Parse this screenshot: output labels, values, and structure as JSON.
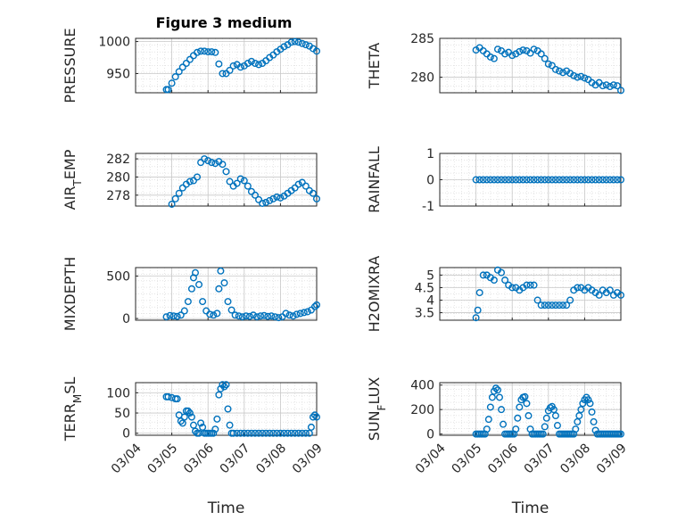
{
  "figure": {
    "title": "Figure 3 medium"
  },
  "colors": {
    "marker": "#0072BD",
    "axis": "#262626",
    "grid": "#dcdcdc"
  },
  "chart_data": [
    {
      "type": "scatter",
      "ylabel": "PRESSURE",
      "ylabel_sub": null,
      "ylim": [
        920,
        1005
      ],
      "yticks": [
        950,
        1000
      ],
      "ytick_labels": [
        "950",
        "1000"
      ],
      "xlabel": "",
      "show_xticks": false,
      "x": [
        4.85,
        4.9,
        5.0,
        5.1,
        5.2,
        5.3,
        5.4,
        5.5,
        5.6,
        5.7,
        5.8,
        5.9,
        6.0,
        6.1,
        6.2,
        6.3,
        6.4,
        6.5,
        6.6,
        6.7,
        6.8,
        6.9,
        7.0,
        7.1,
        7.2,
        7.3,
        7.4,
        7.5,
        7.6,
        7.7,
        7.8,
        7.9,
        8.0,
        8.1,
        8.2,
        8.3,
        8.4,
        8.5,
        8.6,
        8.7,
        8.8,
        8.9,
        9.0
      ],
      "y": [
        925,
        925,
        935,
        945,
        953,
        960,
        966,
        972,
        978,
        983,
        985,
        985,
        984,
        984,
        983,
        965,
        950,
        950,
        955,
        962,
        964,
        960,
        962,
        966,
        969,
        966,
        964,
        966,
        970,
        975,
        979,
        984,
        988,
        992,
        995,
        999,
        1000,
        999,
        997,
        995,
        993,
        989,
        985
      ]
    },
    {
      "type": "scatter",
      "ylabel": "THETA",
      "ylabel_sub": null,
      "ylim": [
        278,
        285
      ],
      "yticks": [
        280,
        285
      ],
      "ytick_labels": [
        "280",
        "285"
      ],
      "xlabel": "",
      "show_xticks": false,
      "x": [
        5.0,
        5.1,
        5.2,
        5.3,
        5.4,
        5.5,
        5.6,
        5.7,
        5.8,
        5.9,
        6.0,
        6.1,
        6.2,
        6.3,
        6.4,
        6.5,
        6.6,
        6.7,
        6.8,
        6.9,
        7.0,
        7.1,
        7.2,
        7.3,
        7.4,
        7.5,
        7.6,
        7.7,
        7.8,
        7.9,
        8.0,
        8.1,
        8.2,
        8.3,
        8.4,
        8.5,
        8.6,
        8.7,
        8.8,
        8.9,
        9.0
      ],
      "y": [
        283.5,
        283.8,
        283.4,
        283.0,
        282.6,
        282.4,
        283.6,
        283.4,
        283.0,
        283.2,
        282.8,
        283.0,
        283.3,
        283.5,
        283.4,
        283.1,
        283.6,
        283.4,
        283.0,
        282.4,
        281.7,
        281.5,
        281.0,
        280.8,
        280.6,
        280.8,
        280.5,
        280.2,
        280.0,
        280.1,
        279.9,
        279.7,
        279.3,
        279.0,
        279.3,
        278.9,
        279.0,
        278.8,
        279.0,
        278.9,
        278.3
      ]
    },
    {
      "type": "scatter",
      "ylabel": "AIR",
      "ylabel_sub": "T",
      "ylabel_suffix": "EMP",
      "ylim": [
        276.8,
        282.6
      ],
      "yticks": [
        278,
        280,
        282
      ],
      "ytick_labels": [
        "278",
        "280",
        "282"
      ],
      "xlabel": "",
      "show_xticks": false,
      "x": [
        5.0,
        5.1,
        5.2,
        5.3,
        5.4,
        5.5,
        5.6,
        5.7,
        5.8,
        5.9,
        6.0,
        6.1,
        6.2,
        6.3,
        6.4,
        6.5,
        6.6,
        6.7,
        6.8,
        6.9,
        7.0,
        7.1,
        7.2,
        7.3,
        7.4,
        7.5,
        7.6,
        7.7,
        7.8,
        7.9,
        8.0,
        8.1,
        8.2,
        8.3,
        8.4,
        8.5,
        8.6,
        8.7,
        8.8,
        8.9,
        9.0
      ],
      "y": [
        277.0,
        277.6,
        278.2,
        278.8,
        279.2,
        279.5,
        279.6,
        280.0,
        281.6,
        282.0,
        281.8,
        281.6,
        281.5,
        281.7,
        281.4,
        280.6,
        279.5,
        279.0,
        279.3,
        279.8,
        279.6,
        279.0,
        278.4,
        278.0,
        277.5,
        277.1,
        277.2,
        277.4,
        277.6,
        277.8,
        277.7,
        277.9,
        278.2,
        278.5,
        278.8,
        279.2,
        279.4,
        279.0,
        278.5,
        278.2,
        277.6
      ]
    },
    {
      "type": "scatter",
      "ylabel": "RAINFALL",
      "ylabel_sub": null,
      "ylim": [
        -1,
        1
      ],
      "yticks": [
        -1,
        0,
        1
      ],
      "ytick_labels": [
        "-1",
        "0",
        "1"
      ],
      "xlabel": "",
      "show_xticks": false,
      "x": [
        5.0,
        5.1,
        5.2,
        5.3,
        5.4,
        5.5,
        5.6,
        5.7,
        5.8,
        5.9,
        6.0,
        6.1,
        6.2,
        6.3,
        6.4,
        6.5,
        6.6,
        6.7,
        6.8,
        6.9,
        7.0,
        7.1,
        7.2,
        7.3,
        7.4,
        7.5,
        7.6,
        7.7,
        7.8,
        7.9,
        8.0,
        8.1,
        8.2,
        8.3,
        8.4,
        8.5,
        8.6,
        8.7,
        8.8,
        8.9,
        9.0
      ],
      "y": [
        0,
        0,
        0,
        0,
        0,
        0,
        0,
        0,
        0,
        0,
        0,
        0,
        0,
        0,
        0,
        0,
        0,
        0,
        0,
        0,
        0,
        0,
        0,
        0,
        0,
        0,
        0,
        0,
        0,
        0,
        0,
        0,
        0,
        0,
        0,
        0,
        0,
        0,
        0,
        0,
        0
      ]
    },
    {
      "type": "scatter",
      "ylabel": "MIXDEPTH",
      "ylabel_sub": null,
      "ylim": [
        -20,
        600
      ],
      "yticks": [
        0,
        500
      ],
      "ytick_labels": [
        "0",
        "500"
      ],
      "xlabel": "",
      "show_xticks": false,
      "x": [
        4.85,
        4.95,
        5.05,
        5.15,
        5.25,
        5.35,
        5.45,
        5.55,
        5.6,
        5.65,
        5.75,
        5.85,
        5.95,
        6.05,
        6.15,
        6.25,
        6.3,
        6.35,
        6.45,
        6.55,
        6.65,
        6.75,
        6.85,
        6.95,
        7.05,
        7.15,
        7.25,
        7.35,
        7.45,
        7.55,
        7.65,
        7.75,
        7.85,
        7.95,
        8.05,
        8.15,
        8.25,
        8.35,
        8.45,
        8.55,
        8.65,
        8.75,
        8.85,
        8.95,
        9.0
      ],
      "y": [
        20,
        35,
        30,
        25,
        40,
        90,
        200,
        350,
        480,
        540,
        400,
        200,
        90,
        50,
        40,
        60,
        350,
        560,
        420,
        200,
        100,
        40,
        30,
        20,
        30,
        25,
        40,
        20,
        30,
        35,
        25,
        30,
        20,
        10,
        20,
        60,
        40,
        30,
        50,
        60,
        70,
        80,
        100,
        140,
        160
      ]
    },
    {
      "type": "scatter",
      "ylabel": "H2OMIXRA",
      "ylabel_sub": null,
      "ylim": [
        3.2,
        5.3
      ],
      "yticks": [
        3.5,
        4,
        4.5,
        5
      ],
      "ytick_labels": [
        "3.5",
        "4",
        "4.5",
        "5"
      ],
      "xlabel": "",
      "show_xticks": false,
      "x": [
        5.0,
        5.05,
        5.1,
        5.2,
        5.3,
        5.4,
        5.5,
        5.6,
        5.7,
        5.8,
        5.9,
        6.0,
        6.1,
        6.2,
        6.3,
        6.4,
        6.5,
        6.6,
        6.7,
        6.8,
        6.9,
        7.0,
        7.1,
        7.2,
        7.3,
        7.4,
        7.5,
        7.6,
        7.7,
        7.8,
        7.9,
        8.0,
        8.1,
        8.2,
        8.3,
        8.4,
        8.5,
        8.6,
        8.7,
        8.8,
        8.9,
        9.0
      ],
      "y": [
        3.3,
        3.6,
        4.3,
        5.0,
        5.0,
        4.9,
        4.8,
        5.2,
        5.1,
        4.8,
        4.6,
        4.5,
        4.5,
        4.4,
        4.5,
        4.6,
        4.6,
        4.6,
        4.0,
        3.8,
        3.8,
        3.8,
        3.8,
        3.8,
        3.8,
        3.8,
        3.8,
        4.0,
        4.4,
        4.5,
        4.5,
        4.4,
        4.5,
        4.4,
        4.3,
        4.2,
        4.4,
        4.3,
        4.4,
        4.2,
        4.3,
        4.2
      ]
    },
    {
      "type": "scatter",
      "ylabel": "TERR",
      "ylabel_sub": "M",
      "ylabel_suffix": "SL",
      "ylim": [
        -5,
        125
      ],
      "yticks": [
        0,
        50,
        100
      ],
      "ytick_labels": [
        "0",
        "50",
        "100"
      ],
      "xlabel": "Time",
      "show_xticks": true,
      "xticks": [
        4,
        5,
        6,
        7,
        8,
        9
      ],
      "xtick_labels": [
        "03/04",
        "03/05",
        "03/06",
        "03/07",
        "03/08",
        "03/09"
      ],
      "x": [
        4.85,
        4.9,
        5.0,
        5.1,
        5.15,
        5.2,
        5.25,
        5.3,
        5.35,
        5.4,
        5.45,
        5.5,
        5.55,
        5.6,
        5.65,
        5.7,
        5.75,
        5.8,
        5.85,
        5.9,
        5.95,
        6.0,
        6.05,
        6.1,
        6.15,
        6.2,
        6.25,
        6.3,
        6.35,
        6.4,
        6.45,
        6.5,
        6.55,
        6.6,
        6.65,
        6.7,
        6.8,
        6.9,
        7.0,
        7.1,
        7.2,
        7.3,
        7.4,
        7.5,
        7.6,
        7.7,
        7.8,
        7.9,
        8.0,
        8.1,
        8.2,
        8.3,
        8.4,
        8.5,
        8.6,
        8.7,
        8.8,
        8.85,
        8.9,
        8.95,
        9.0
      ],
      "y": [
        90,
        90,
        88,
        85,
        85,
        45,
        30,
        25,
        40,
        55,
        55,
        50,
        40,
        20,
        5,
        0,
        0,
        25,
        15,
        0,
        0,
        0,
        0,
        0,
        0,
        10,
        35,
        95,
        110,
        120,
        115,
        120,
        60,
        20,
        0,
        0,
        0,
        0,
        0,
        0,
        0,
        0,
        0,
        0,
        0,
        0,
        0,
        0,
        0,
        0,
        0,
        0,
        0,
        0,
        0,
        0,
        0,
        15,
        40,
        45,
        40
      ]
    },
    {
      "type": "scatter",
      "ylabel": "SUN",
      "ylabel_sub": "F",
      "ylabel_suffix": "LUX",
      "ylim": [
        -10,
        420
      ],
      "yticks": [
        0,
        200,
        400
      ],
      "ytick_labels": [
        "0",
        "200",
        "400"
      ],
      "xlabel": "Time",
      "show_xticks": true,
      "xticks": [
        4,
        5,
        6,
        7,
        8,
        9
      ],
      "xtick_labels": [
        "03/04",
        "03/05",
        "03/06",
        "03/07",
        "03/08",
        "03/09"
      ],
      "x": [
        5.0,
        5.05,
        5.1,
        5.15,
        5.2,
        5.25,
        5.3,
        5.35,
        5.4,
        5.45,
        5.5,
        5.55,
        5.6,
        5.65,
        5.7,
        5.75,
        5.8,
        5.85,
        5.9,
        5.95,
        6.0,
        6.05,
        6.1,
        6.15,
        6.2,
        6.25,
        6.3,
        6.35,
        6.4,
        6.45,
        6.5,
        6.55,
        6.6,
        6.65,
        6.7,
        6.75,
        6.8,
        6.85,
        6.9,
        6.95,
        7.0,
        7.05,
        7.1,
        7.15,
        7.2,
        7.25,
        7.3,
        7.35,
        7.4,
        7.45,
        7.5,
        7.55,
        7.6,
        7.65,
        7.7,
        7.75,
        7.8,
        7.85,
        7.9,
        7.95,
        8.0,
        8.05,
        8.1,
        8.15,
        8.2,
        8.25,
        8.3,
        8.35,
        8.4,
        8.45,
        8.5,
        8.55,
        8.6,
        8.65,
        8.7,
        8.75,
        8.8,
        8.85,
        8.9,
        8.95,
        9.0
      ],
      "y": [
        0,
        0,
        0,
        0,
        0,
        0,
        40,
        120,
        220,
        300,
        350,
        375,
        360,
        300,
        200,
        80,
        0,
        0,
        0,
        0,
        0,
        0,
        40,
        130,
        220,
        280,
        300,
        305,
        250,
        150,
        40,
        0,
        0,
        0,
        0,
        0,
        0,
        0,
        60,
        130,
        190,
        215,
        225,
        200,
        150,
        70,
        0,
        0,
        0,
        0,
        0,
        0,
        0,
        0,
        0,
        40,
        100,
        150,
        200,
        250,
        280,
        300,
        280,
        250,
        180,
        100,
        30,
        0,
        0,
        0,
        0,
        0,
        0,
        0,
        0,
        0,
        0,
        0,
        0,
        0,
        0
      ]
    }
  ]
}
